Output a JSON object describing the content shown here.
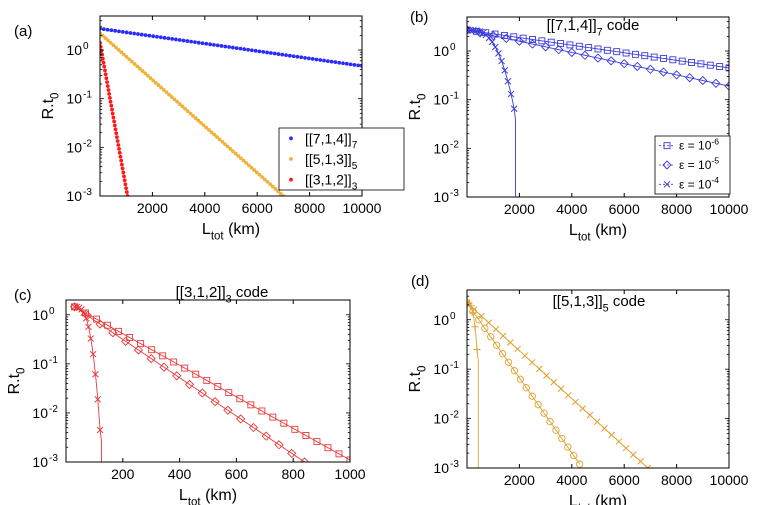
{
  "figure": {
    "panel_count": 4
  },
  "chart_data": [
    {
      "panel_label": "(a)",
      "type": "scatter",
      "title": "",
      "xlabel": "L",
      "xlabel_sub": "tot",
      "xlabel_unit": " (km)",
      "ylabel": "R.t",
      "ylabel_sub": "0",
      "xlim": [
        0,
        10000
      ],
      "ylim": [
        0.001,
        5
      ],
      "yscale": "log",
      "xticks": [
        2000,
        4000,
        6000,
        8000,
        10000
      ],
      "xtick_labels": [
        "2000",
        "4000",
        "6000",
        "8000",
        "10000"
      ],
      "yticks": [
        0.001,
        0.01,
        0.1,
        1
      ],
      "ytick_labels": [
        {
          "base": "10",
          "exp": "-3"
        },
        {
          "base": "10",
          "exp": "-2"
        },
        {
          "base": "10",
          "exp": "-1"
        },
        {
          "base": "10",
          "exp": "0"
        }
      ],
      "grid": false,
      "legend_position": "bottom-right",
      "legend_box": true,
      "series": [
        {
          "name": "[[7,1,4]]",
          "name_sub": "7",
          "color": "#2b2bff",
          "marker": "dot",
          "line": false,
          "points": 70,
          "x": [
            0,
            10000
          ],
          "y": [
            2.75,
            0.47
          ]
        },
        {
          "name": "[[5,1,3]]",
          "name_sub": "5",
          "color": "#f0b23c",
          "marker": "dot",
          "line": false,
          "points": 70,
          "x": [
            0,
            7000
          ],
          "y": [
            2.2,
            0.001
          ]
        },
        {
          "name": "[[3,1,2]]",
          "name_sub": "3",
          "color": "#ff1a1a",
          "marker": "dot",
          "line": false,
          "points": 40,
          "x": [
            0,
            1050
          ],
          "y": [
            1.4,
            0.001
          ]
        }
      ]
    },
    {
      "panel_label": "(b)",
      "type": "line",
      "title": "[[7,1,4]]",
      "title_sub": "7",
      "title_suffix": " code",
      "xlabel": "L",
      "xlabel_sub": "tot",
      "xlabel_unit": " (km)",
      "ylabel": "R.t",
      "ylabel_sub": "0",
      "xlim": [
        0,
        10000
      ],
      "ylim": [
        0.001,
        5
      ],
      "yscale": "log",
      "xticks": [
        2000,
        4000,
        6000,
        8000,
        10000
      ],
      "xtick_labels": [
        "2000",
        "4000",
        "6000",
        "8000",
        "10000"
      ],
      "yticks": [
        0.001,
        0.01,
        0.1,
        1
      ],
      "ytick_labels": [
        {
          "base": "10",
          "exp": "-3"
        },
        {
          "base": "10",
          "exp": "-2"
        },
        {
          "base": "10",
          "exp": "-1"
        },
        {
          "base": "10",
          "exp": "0"
        }
      ],
      "grid": false,
      "legend_position": "bottom-right",
      "legend_box": true,
      "series": [
        {
          "name": "ε = 10",
          "name_sup": "-6",
          "color": "#3b3bd9",
          "marker": "square",
          "line": true,
          "points": 29,
          "x": [
            0,
            10000
          ],
          "y": [
            2.7,
            0.45
          ]
        },
        {
          "name": "ε = 10",
          "name_sup": "-5",
          "color": "#3b3bd9",
          "marker": "diamond",
          "line": true,
          "points": 21,
          "x": [
            0,
            10000
          ],
          "y": [
            2.7,
            0.19
          ]
        },
        {
          "name": "ε = 10",
          "name_sup": "-4",
          "color": "#3b3bd9",
          "marker": "x",
          "line": true,
          "points": 16,
          "curve": "cutoff",
          "cutoff_x": 1850,
          "x": [
            0,
            1800
          ],
          "y": [
            2.7,
            0.065
          ]
        }
      ]
    },
    {
      "panel_label": "(c)",
      "type": "line",
      "title": "[[3,1,2]]",
      "title_sub": "3",
      "title_suffix": " code",
      "xlabel": "L",
      "xlabel_sub": "tot",
      "xlabel_unit": " (km)",
      "ylabel": "R.t",
      "ylabel_sub": "0",
      "xlim": [
        0,
        1000
      ],
      "ylim": [
        0.001,
        2
      ],
      "yscale": "log",
      "xticks": [
        200,
        400,
        600,
        800,
        1000
      ],
      "xtick_labels": [
        "200",
        "400",
        "600",
        "800",
        "1000"
      ],
      "yticks": [
        0.001,
        0.01,
        0.1,
        1
      ],
      "ytick_labels": [
        {
          "base": "10",
          "exp": "-3"
        },
        {
          "base": "10",
          "exp": "-2"
        },
        {
          "base": "10",
          "exp": "-1"
        },
        {
          "base": "10",
          "exp": "0"
        }
      ],
      "grid": false,
      "legend_position": "none",
      "legend_box": false,
      "series": [
        {
          "name": "",
          "color": "#e83a3a",
          "marker": "square",
          "line": true,
          "points": 26,
          "x": [
            30,
            1000
          ],
          "y": [
            1.45,
            0.0011
          ]
        },
        {
          "name": "",
          "color": "#e83a3a",
          "marker": "diamond",
          "line": true,
          "points": 19,
          "x": [
            30,
            840
          ],
          "y": [
            1.45,
            0.001
          ]
        },
        {
          "name": "",
          "color": "#e83a3a",
          "marker": "x",
          "line": true,
          "points": 12,
          "curve": "cutoff",
          "cutoff_x": 125,
          "x": [
            30,
            120
          ],
          "y": [
            1.45,
            0.0045
          ]
        }
      ]
    },
    {
      "panel_label": "(d)",
      "type": "line",
      "title": "[[5,1,3]]",
      "title_sub": "5",
      "title_suffix": " code",
      "xlabel": "L",
      "xlabel_sub": "tot",
      "xlabel_unit": " (km)",
      "ylabel": "R.t",
      "ylabel_sub": "0",
      "xlim": [
        0,
        10000
      ],
      "ylim": [
        0.001,
        4
      ],
      "yscale": "log",
      "xticks": [
        2000,
        4000,
        6000,
        8000,
        10000
      ],
      "xtick_labels": [
        "2000",
        "4000",
        "6000",
        "8000",
        "10000"
      ],
      "yticks": [
        0.001,
        0.01,
        0.1,
        1
      ],
      "ytick_labels": [
        {
          "base": "10",
          "exp": "-3"
        },
        {
          "base": "10",
          "exp": "-2"
        },
        {
          "base": "10",
          "exp": "-1"
        },
        {
          "base": "10",
          "exp": "0"
        }
      ],
      "grid": false,
      "legend_position": "none",
      "legend_box": false,
      "series": [
        {
          "name": "",
          "color": "#e0a12e",
          "marker": "x",
          "line": true,
          "points": 26,
          "x": [
            0,
            6900
          ],
          "y": [
            2.2,
            0.001
          ]
        },
        {
          "name": "",
          "color": "#e0a12e",
          "marker": "circle",
          "line": true,
          "points": 20,
          "x": [
            0,
            4300
          ],
          "y": [
            2.2,
            0.0012
          ]
        },
        {
          "name": "",
          "color": "#e0a12e",
          "marker": "plus",
          "line": true,
          "points": 6,
          "curve": "cutoff",
          "cutoff_x": 430,
          "x": [
            0,
            380
          ],
          "y": [
            2.2,
            0.25
          ]
        }
      ]
    }
  ]
}
